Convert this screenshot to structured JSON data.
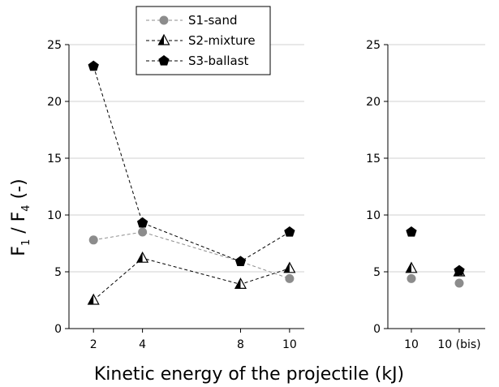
{
  "chart_data": [
    {
      "type": "line",
      "panel": "left",
      "categories": [
        "2",
        "4",
        "8",
        "10"
      ],
      "x": [
        2,
        4,
        8,
        10
      ],
      "xlabel": "Kinetic energy of the projectile (kJ)",
      "ylabel": "F1 / F4 (-)",
      "ylim": [
        0,
        25
      ],
      "yticks": [
        "0",
        "5",
        "10",
        "15",
        "20",
        "25"
      ],
      "grid": true,
      "series": [
        {
          "name": "S1-sand",
          "values": [
            7.8,
            8.5,
            5.9,
            4.4
          ],
          "color": "#8c8c8c",
          "marker": "circle"
        },
        {
          "name": "S2-mixture",
          "values": [
            2.5,
            6.2,
            3.9,
            5.3
          ],
          "color": "#000000",
          "marker": "half-triangle"
        },
        {
          "name": "S3-ballast",
          "values": [
            23.1,
            9.3,
            5.9,
            8.5
          ],
          "color": "#000000",
          "marker": "pentagon"
        }
      ]
    },
    {
      "type": "scatter",
      "panel": "right",
      "categories": [
        "10",
        "10 (bis)"
      ],
      "ylim": [
        0,
        25
      ],
      "yticks": [
        "0",
        "5",
        "10",
        "15",
        "20",
        "25"
      ],
      "grid": true,
      "series": [
        {
          "name": "S1-sand",
          "values": [
            4.4,
            4.0
          ]
        },
        {
          "name": "S2-mixture",
          "values": [
            5.3,
            5.0
          ]
        },
        {
          "name": "S3-ballast",
          "values": [
            8.5,
            5.1
          ]
        }
      ]
    }
  ],
  "legend": {
    "position": "top-center",
    "items": [
      "S1-sand",
      "S2-mixture",
      "S3-ballast"
    ]
  }
}
